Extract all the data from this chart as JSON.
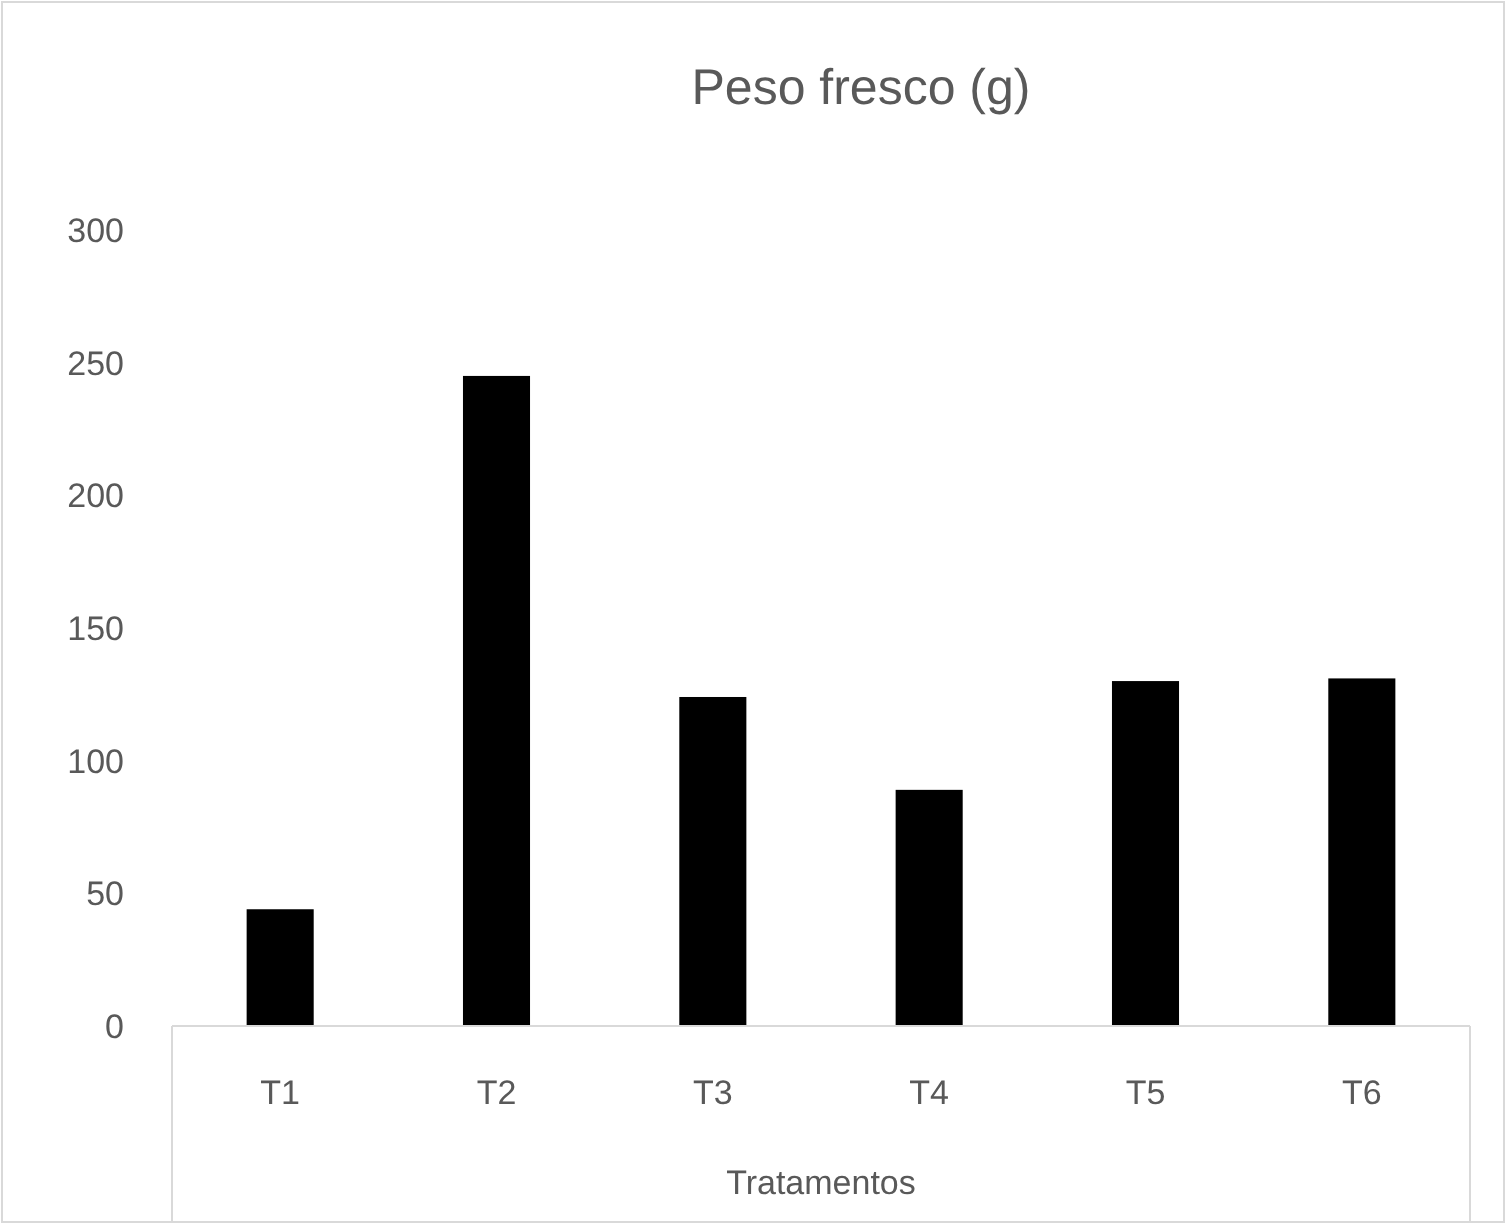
{
  "chart_data": {
    "type": "bar",
    "title": "Peso fresco (g)",
    "xlabel": "Tratamentos",
    "categories": [
      "T1",
      "T2",
      "T3",
      "T4",
      "T5",
      "T6"
    ],
    "values": [
      44,
      245,
      124,
      89,
      130,
      131
    ],
    "color": "#000000",
    "ylim": [
      0,
      300
    ],
    "yticks": [
      0,
      50,
      100,
      150,
      200,
      250,
      300
    ],
    "grid": false
  }
}
